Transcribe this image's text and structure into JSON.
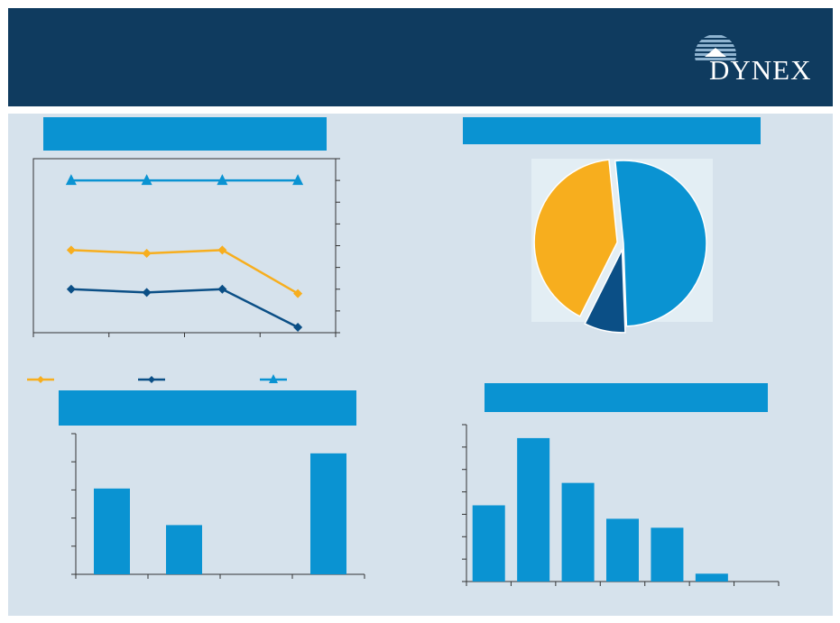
{
  "logo": {
    "text": "DYNEX"
  },
  "colors": {
    "header_bg": "#0f3b5f",
    "panel_bg": "#d6e2ec",
    "band": "#0a93d2",
    "orange": "#f7ae1e",
    "navy": "#0b4f86",
    "blue": "#0a93d2"
  },
  "chart_data": [
    {
      "type": "line",
      "title": "",
      "markers": [
        "diamond",
        "diamond",
        "triangle"
      ],
      "x_count": 4,
      "y_range": [
        0,
        8
      ],
      "y_ticks": 8,
      "series": [
        {
          "color": "#f7ae1e",
          "marker": "diamond",
          "values": [
            3.8,
            3.65,
            3.8,
            1.8
          ]
        },
        {
          "color": "#0b4f86",
          "marker": "diamond",
          "values": [
            2.0,
            1.85,
            2.0,
            0.25
          ]
        },
        {
          "color": "#0a93d2",
          "marker": "triangle",
          "values": [
            7.0,
            7.0,
            7.0,
            7.0
          ]
        }
      ],
      "legend": "bottom"
    },
    {
      "type": "pie",
      "title": "",
      "slices": [
        {
          "color": "#0a93d2",
          "value": 51,
          "exploded": false
        },
        {
          "color": "#0b4f86",
          "value": 8,
          "exploded": true
        },
        {
          "color": "#f7ae1e",
          "value": 41,
          "exploded": true
        }
      ]
    },
    {
      "type": "bar",
      "title": "",
      "categories": [
        "",
        "",
        "",
        ""
      ],
      "values": [
        3.05,
        1.75,
        0,
        4.3
      ],
      "ylim": [
        0,
        5
      ],
      "y_ticks": 5
    },
    {
      "type": "bar",
      "title": "",
      "categories": [
        "",
        "",
        "",
        "",
        "",
        "",
        ""
      ],
      "values": [
        3.4,
        6.4,
        4.4,
        2.8,
        2.4,
        0.35,
        0
      ],
      "ylim": [
        0,
        7
      ],
      "y_ticks": 7
    }
  ]
}
